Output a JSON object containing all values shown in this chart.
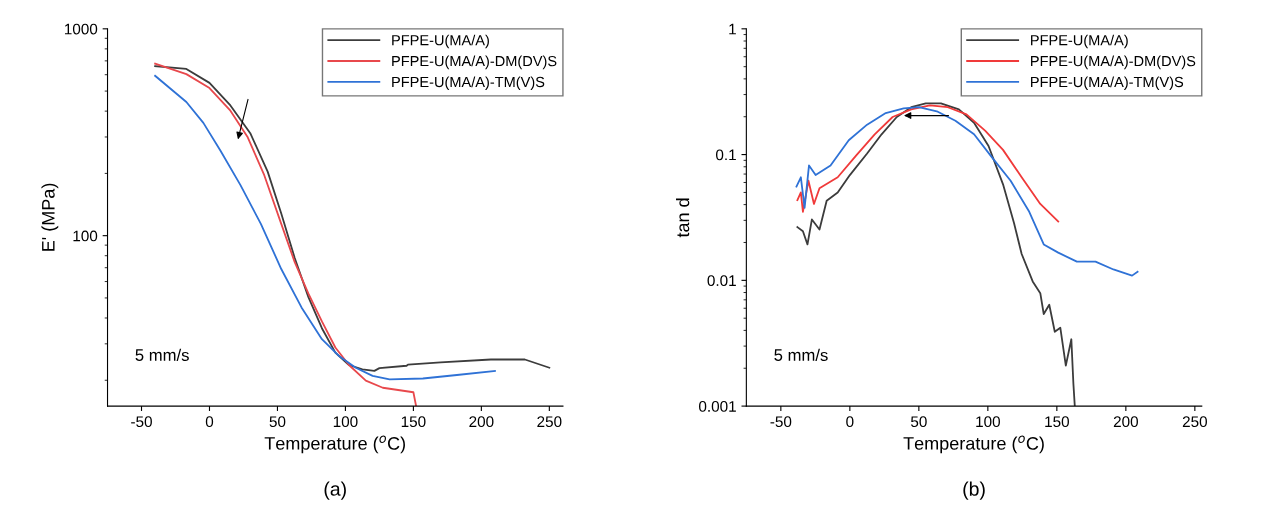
{
  "chart_data": [
    {
      "type": "line",
      "xlabel": "Temperature ($^{o}$C)",
      "ylabel": "E' (MPa)",
      "log": "y",
      "xlim": [
        -75,
        260
      ],
      "ylim": [
        15,
        1000
      ],
      "xticks": [
        -50,
        0,
        50,
        100,
        150,
        200,
        250
      ],
      "yticks": [
        100,
        1000
      ],
      "grid": false,
      "legend": "top right",
      "marker": "none",
      "line_style": "solid",
      "annotations": [
        "5 mm/s",
        "(a)"
      ],
      "series": [
        {
          "name": "PFPE-U(MA/A)",
          "color": "#3c3c3c",
          "x": [
            -40,
            -17,
            0,
            15.4,
            30,
            42.8,
            52.8,
            62.7,
            72.7,
            82.7,
            92.6,
            102.6,
            112.5,
            121.3,
            125,
            145,
            146,
            170,
            207,
            232,
            250
          ],
          "values": [
            660,
            640,
            548,
            426,
            313,
            204,
            128,
            78,
            50.6,
            35.7,
            27.2,
            23.7,
            22.6,
            22.2,
            22.9,
            23.5,
            23.8,
            24.4,
            25.2,
            25.2,
            23.0
          ]
        },
        {
          "name": "PFPE-U(MA/A)-DM(DV)S",
          "color": "#e8484c",
          "x": [
            -40,
            -17,
            0,
            15.4,
            27.9,
            40.3,
            52.8,
            62.7,
            72.7,
            82.7,
            92.6,
            102.6,
            115,
            127.5,
            150,
            152
          ],
          "values": [
            679,
            604,
            517,
            402,
            301,
            196,
            114,
            74.5,
            52.6,
            38.5,
            28.8,
            23.7,
            19.9,
            18.4,
            17.5,
            15
          ]
        },
        {
          "name": "PFPE-U(MA/A)-TM(V)S",
          "color": "#2f72d6",
          "x": [
            -40,
            -17,
            -4.5,
            8,
            22.9,
            37.8,
            52.8,
            67.7,
            82.7,
            95,
            107.6,
            120,
            132.5,
            157,
            182,
            210
          ],
          "values": [
            593,
            443,
            351,
            258,
            175,
            114,
            69,
            45,
            31.6,
            26.3,
            23,
            21,
            20.2,
            20.4,
            21.2,
            22.2
          ]
        }
      ]
    },
    {
      "type": "line",
      "xlabel": "Temperature ($^{o}$C)",
      "ylabel": "tan d",
      "log": "y",
      "xlim": [
        -75,
        255
      ],
      "ylim": [
        0.001,
        1
      ],
      "xticks": [
        -50,
        0,
        50,
        100,
        150,
        200,
        250
      ],
      "yticks": [
        0.001,
        0.01,
        0.1,
        1
      ],
      "grid": false,
      "legend": "top right",
      "marker": "none",
      "line_style": "solid",
      "annotations": [
        "5 mm/s",
        "(b)"
      ],
      "series": [
        {
          "name": "PFPE-U(MA/A)",
          "color": "#3c3c3c",
          "x": [
            -38,
            -34,
            -30.7,
            -27.5,
            -22,
            -16.8,
            -8.8,
            0,
            12.5,
            23,
            34,
            44.5,
            55,
            66,
            79,
            90,
            100.5,
            111,
            119,
            124.5,
            132.5,
            138,
            140.5,
            144.5,
            148.5,
            152.5,
            156.5,
            160.5,
            162,
            163
          ],
          "values": [
            0.0265,
            0.0246,
            0.0193,
            0.0305,
            0.0254,
            0.043,
            0.05,
            0.0687,
            0.102,
            0.145,
            0.199,
            0.238,
            0.255,
            0.255,
            0.229,
            0.179,
            0.117,
            0.058,
            0.0284,
            0.0162,
            0.0098,
            0.0079,
            0.0054,
            0.0064,
            0.0039,
            0.0042,
            0.0021,
            0.0034,
            0.0015,
            0.001
          ]
        },
        {
          "name": "PFPE-U(MA/A)-DM(DV)S",
          "color": "#f03a3a",
          "x": [
            -38,
            -35.5,
            -34,
            -30,
            -26,
            -22,
            -8.8,
            4.5,
            18,
            31,
            44.5,
            58,
            71,
            84.5,
            98,
            111,
            124.5,
            138,
            151
          ],
          "values": [
            0.0434,
            0.05,
            0.035,
            0.062,
            0.0405,
            0.054,
            0.066,
            0.098,
            0.145,
            0.199,
            0.229,
            0.246,
            0.238,
            0.209,
            0.155,
            0.109,
            0.066,
            0.0405,
            0.0294
          ]
        },
        {
          "name": "PFPE-U(MA/A)-TM(V)S",
          "color": "#2f72d6",
          "x": [
            -38.7,
            -35.5,
            -32.8,
            -29.6,
            -24.8,
            -14,
            -0.8,
            12.5,
            26,
            39,
            50,
            63,
            76.5,
            90,
            103,
            116.5,
            130,
            140.5,
            151,
            164.5,
            178,
            191,
            204.5,
            208.5
          ],
          "values": [
            0.0557,
            0.066,
            0.0377,
            0.082,
            0.0687,
            0.082,
            0.13,
            0.173,
            0.214,
            0.233,
            0.238,
            0.221,
            0.186,
            0.145,
            0.095,
            0.062,
            0.0351,
            0.0193,
            0.0166,
            0.0141,
            0.0141,
            0.0122,
            0.0109,
            0.0117
          ]
        }
      ]
    }
  ]
}
